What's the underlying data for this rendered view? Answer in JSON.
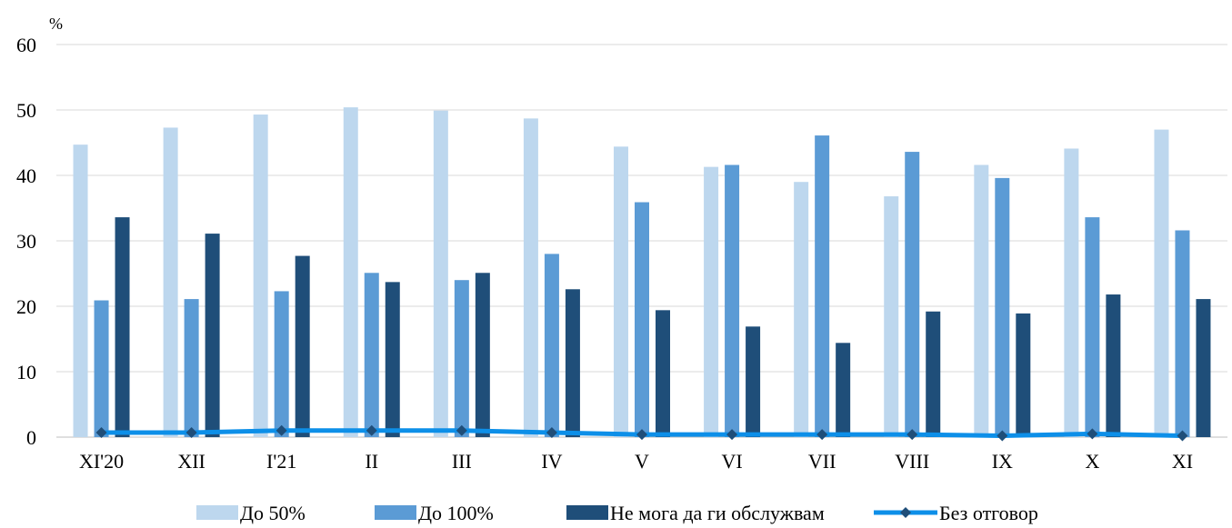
{
  "chart_data": {
    "type": "bar",
    "unit_label": "%",
    "categories": [
      "XI'20",
      "XII",
      "I'21",
      "II",
      "III",
      "IV",
      "V",
      "VI",
      "VII",
      "VIII",
      "IX",
      "X",
      "XI"
    ],
    "ylim": [
      0,
      60
    ],
    "yticks": [
      0,
      10,
      20,
      30,
      40,
      50,
      60
    ],
    "grid": true,
    "legend_position": "bottom",
    "series": [
      {
        "name": "До 50%",
        "kind": "bar",
        "color": "#bdd7ee",
        "values": [
          44.7,
          47.3,
          49.3,
          50.4,
          49.9,
          48.7,
          44.4,
          41.3,
          39.0,
          36.8,
          41.6,
          44.1,
          47.0
        ]
      },
      {
        "name": "До 100%",
        "kind": "bar",
        "color": "#5b9bd5",
        "values": [
          20.9,
          21.1,
          22.3,
          25.1,
          24.0,
          28.0,
          35.9,
          41.6,
          46.1,
          43.6,
          39.6,
          33.6,
          31.6
        ]
      },
      {
        "name": "Не мога да ги обслужвам",
        "kind": "bar",
        "color": "#1f4e79",
        "values": [
          33.6,
          31.1,
          27.7,
          23.7,
          25.1,
          22.6,
          19.4,
          16.9,
          14.4,
          19.2,
          18.9,
          21.8,
          21.1
        ]
      },
      {
        "name": "Без отговор",
        "kind": "line",
        "color": "#0d8fe8",
        "marker_color": "#1f4e79",
        "values": [
          0.7,
          0.7,
          1.0,
          1.0,
          1.0,
          0.7,
          0.4,
          0.4,
          0.4,
          0.4,
          0.2,
          0.5,
          0.2
        ]
      }
    ]
  }
}
